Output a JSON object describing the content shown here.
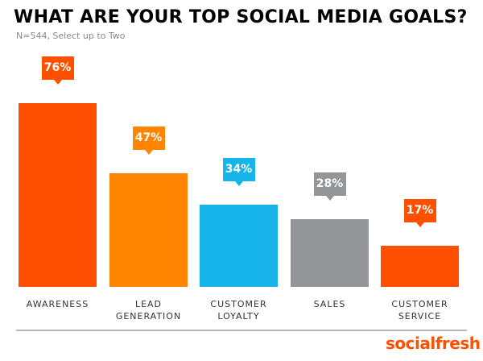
{
  "chart_data": {
    "type": "bar",
    "title": "WHAT ARE YOUR TOP SOCIAL MEDIA GOALS?",
    "subtitle": "N=544, Select up to Two",
    "categories": [
      "AWARENESS",
      "LEAD\nGENERATION",
      "CUSTOMER\nLOYALTY",
      "SALES",
      "CUSTOMER\nSERVICE"
    ],
    "values": [
      76,
      47,
      34,
      28,
      17
    ],
    "data_labels": [
      "76%",
      "47%",
      "34%",
      "28%",
      "17%"
    ],
    "colors": [
      "#ff5000",
      "#ff8400",
      "#16b4e8",
      "#939598",
      "#ff5000"
    ],
    "ylim": [
      0,
      80
    ],
    "grid": false,
    "legend": "none"
  },
  "brand": {
    "logo_text": "socialfresh",
    "color": "#ff5000"
  }
}
